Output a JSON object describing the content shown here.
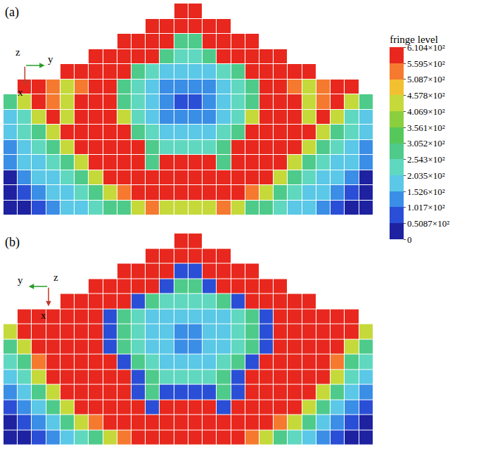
{
  "chart_data": {
    "type": "heatmap",
    "tick_labels": false,
    "colorbar": {
      "title": "fringe level",
      "range": [
        0,
        610.4
      ],
      "ticks": [
        0,
        {
          "value": 50.87,
          "label": "0.5087×10²"
        },
        {
          "value": 101.7,
          "label": "1.017×10²"
        },
        {
          "value": 152.6,
          "label": "1.526×10²"
        },
        {
          "value": 203.5,
          "label": "2.035×10²"
        },
        {
          "value": 254.3,
          "label": "2.543×10²"
        },
        {
          "value": 305.2,
          "label": "3.052×10²"
        },
        {
          "value": 356.1,
          "label": "3.561×10²"
        },
        {
          "value": 406.9,
          "label": "4.069×10²"
        },
        {
          "value": 457.8,
          "label": "4.578×10²"
        },
        {
          "value": 508.7,
          "label": "5.087×10²"
        },
        {
          "value": 559.5,
          "label": "5.595×10²"
        },
        {
          "value": 610.4,
          "label": "6.104×10²"
        }
      ],
      "colors": [
        "#1e22a0",
        "#2a4fd6",
        "#3a8ee6",
        "#5ac8e6",
        "#60d8c0",
        "#4ecb8a",
        "#56c85a",
        "#8ccf3e",
        "#c6d93a",
        "#f2c030",
        "#f57a30",
        "#e8281e"
      ]
    },
    "panels": [
      {
        "label": "(a)",
        "triad": [
          "z",
          "y",
          "x"
        ],
        "cells": [
          [
            null,
            null,
            null,
            null,
            null,
            null,
            null,
            null,
            null,
            null,
            null,
            null,
            585,
            585,
            null,
            null,
            null,
            null,
            null,
            null,
            null,
            null,
            null,
            null,
            null,
            null
          ],
          [
            null,
            null,
            null,
            null,
            null,
            null,
            null,
            null,
            null,
            null,
            585,
            585,
            585,
            585,
            585,
            585,
            null,
            null,
            null,
            null,
            null,
            null,
            null,
            null,
            null,
            null
          ],
          [
            null,
            null,
            null,
            null,
            null,
            null,
            null,
            null,
            585,
            585,
            585,
            585,
            280,
            280,
            585,
            585,
            585,
            585,
            null,
            null,
            null,
            null,
            null,
            null,
            null,
            null
          ],
          [
            null,
            null,
            null,
            null,
            null,
            null,
            585,
            585,
            585,
            585,
            585,
            280,
            230,
            230,
            280,
            585,
            585,
            585,
            585,
            585,
            null,
            null,
            null,
            null,
            null,
            null
          ],
          [
            null,
            null,
            null,
            null,
            585,
            585,
            585,
            585,
            585,
            280,
            230,
            180,
            180,
            180,
            180,
            230,
            280,
            585,
            585,
            585,
            585,
            585,
            null,
            null,
            null,
            null
          ],
          [
            null,
            585,
            585,
            530,
            430,
            530,
            585,
            585,
            280,
            230,
            180,
            130,
            130,
            130,
            130,
            180,
            230,
            280,
            585,
            585,
            530,
            430,
            530,
            585,
            585,
            null
          ],
          [
            280,
            430,
            585,
            530,
            430,
            585,
            585,
            585,
            280,
            230,
            180,
            130,
            80,
            80,
            130,
            180,
            230,
            280,
            585,
            585,
            585,
            430,
            530,
            585,
            430,
            280
          ],
          [
            180,
            230,
            430,
            585,
            430,
            585,
            585,
            585,
            430,
            230,
            180,
            130,
            130,
            130,
            130,
            180,
            230,
            430,
            585,
            585,
            585,
            430,
            585,
            430,
            230,
            180
          ],
          [
            180,
            230,
            280,
            430,
            585,
            585,
            585,
            585,
            585,
            280,
            230,
            180,
            180,
            180,
            180,
            230,
            280,
            585,
            585,
            585,
            585,
            585,
            430,
            280,
            230,
            180
          ],
          [
            130,
            180,
            230,
            280,
            430,
            585,
            585,
            585,
            585,
            585,
            280,
            230,
            230,
            230,
            230,
            280,
            585,
            585,
            585,
            585,
            585,
            430,
            280,
            230,
            180,
            130
          ],
          [
            130,
            180,
            180,
            230,
            280,
            430,
            585,
            585,
            585,
            585,
            280,
            585,
            585,
            585,
            585,
            280,
            585,
            585,
            585,
            585,
            430,
            280,
            230,
            180,
            180,
            130
          ],
          [
            25,
            130,
            180,
            180,
            230,
            280,
            430,
            585,
            585,
            585,
            585,
            585,
            585,
            585,
            585,
            585,
            585,
            585,
            585,
            430,
            280,
            230,
            180,
            180,
            130,
            25
          ],
          [
            25,
            80,
            130,
            180,
            180,
            230,
            280,
            430,
            530,
            585,
            585,
            585,
            585,
            585,
            585,
            585,
            585,
            530,
            430,
            280,
            230,
            180,
            180,
            130,
            80,
            25
          ],
          [
            25,
            25,
            80,
            130,
            180,
            180,
            230,
            280,
            280,
            430,
            530,
            430,
            430,
            430,
            430,
            530,
            430,
            280,
            280,
            230,
            180,
            180,
            130,
            80,
            25,
            25
          ]
        ]
      },
      {
        "label": "(b)",
        "triad": [
          "y",
          "z",
          "x"
        ],
        "cells": [
          [
            null,
            null,
            null,
            null,
            null,
            null,
            null,
            null,
            null,
            null,
            null,
            null,
            585,
            585,
            null,
            null,
            null,
            null,
            null,
            null,
            null,
            null,
            null,
            null,
            null,
            null
          ],
          [
            null,
            null,
            null,
            null,
            null,
            null,
            null,
            null,
            null,
            null,
            585,
            585,
            585,
            585,
            585,
            585,
            null,
            null,
            null,
            null,
            null,
            null,
            null,
            null,
            null,
            null
          ],
          [
            null,
            null,
            null,
            null,
            null,
            null,
            null,
            null,
            585,
            585,
            585,
            585,
            80,
            80,
            585,
            585,
            585,
            585,
            null,
            null,
            null,
            null,
            null,
            null,
            null,
            null
          ],
          [
            null,
            null,
            null,
            null,
            null,
            null,
            585,
            585,
            585,
            585,
            585,
            80,
            280,
            280,
            80,
            585,
            585,
            585,
            585,
            585,
            null,
            null,
            null,
            null,
            null,
            null
          ],
          [
            null,
            null,
            null,
            null,
            585,
            585,
            585,
            585,
            585,
            80,
            280,
            230,
            230,
            230,
            230,
            280,
            80,
            585,
            585,
            585,
            585,
            585,
            null,
            null,
            null,
            null
          ],
          [
            null,
            585,
            585,
            585,
            585,
            585,
            585,
            80,
            280,
            230,
            180,
            180,
            180,
            180,
            180,
            180,
            230,
            280,
            80,
            585,
            585,
            585,
            585,
            585,
            585,
            null
          ],
          [
            430,
            585,
            585,
            585,
            585,
            585,
            585,
            80,
            280,
            230,
            180,
            180,
            130,
            130,
            180,
            180,
            230,
            280,
            80,
            585,
            585,
            585,
            585,
            585,
            585,
            430
          ],
          [
            280,
            430,
            585,
            585,
            585,
            585,
            585,
            80,
            280,
            230,
            180,
            180,
            130,
            130,
            180,
            180,
            230,
            280,
            80,
            585,
            585,
            585,
            585,
            585,
            430,
            280
          ],
          [
            230,
            280,
            530,
            585,
            585,
            585,
            585,
            585,
            80,
            280,
            230,
            180,
            180,
            180,
            180,
            230,
            280,
            80,
            585,
            585,
            585,
            585,
            585,
            530,
            280,
            230
          ],
          [
            180,
            230,
            430,
            585,
            585,
            585,
            585,
            585,
            585,
            80,
            280,
            230,
            230,
            230,
            230,
            280,
            80,
            585,
            585,
            585,
            585,
            585,
            585,
            430,
            230,
            180
          ],
          [
            130,
            180,
            280,
            430,
            585,
            585,
            585,
            585,
            585,
            80,
            280,
            80,
            80,
            80,
            80,
            280,
            80,
            585,
            585,
            585,
            585,
            585,
            430,
            280,
            180,
            130
          ],
          [
            80,
            130,
            180,
            280,
            430,
            585,
            585,
            585,
            585,
            585,
            80,
            585,
            585,
            585,
            585,
            80,
            585,
            585,
            585,
            585,
            585,
            430,
            280,
            180,
            130,
            80
          ],
          [
            25,
            80,
            130,
            180,
            280,
            430,
            530,
            585,
            585,
            585,
            585,
            585,
            585,
            585,
            585,
            585,
            585,
            585,
            585,
            530,
            430,
            280,
            180,
            130,
            80,
            25
          ],
          [
            25,
            25,
            80,
            130,
            180,
            230,
            280,
            430,
            530,
            585,
            585,
            585,
            585,
            585,
            585,
            585,
            585,
            530,
            430,
            280,
            230,
            180,
            130,
            80,
            25,
            25
          ]
        ]
      }
    ]
  }
}
